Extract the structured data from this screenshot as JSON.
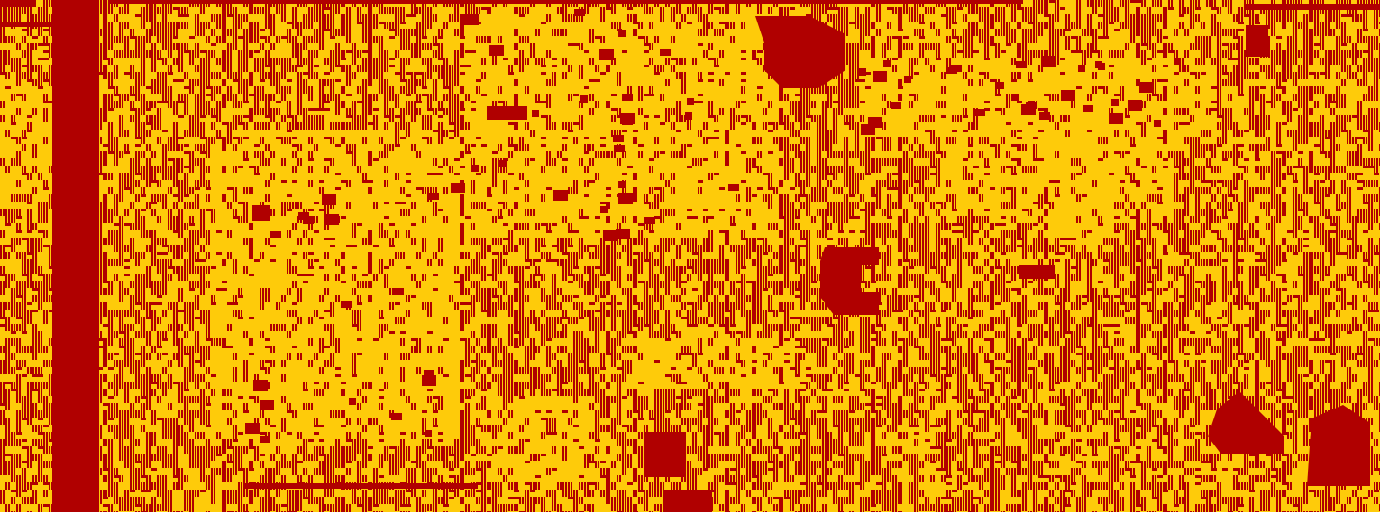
{
  "image": {
    "kind": "pixel-noise-pattern",
    "has_text": false,
    "background_color": "#fecb0a",
    "foreground_color": "#b00000",
    "description": ""
  }
}
